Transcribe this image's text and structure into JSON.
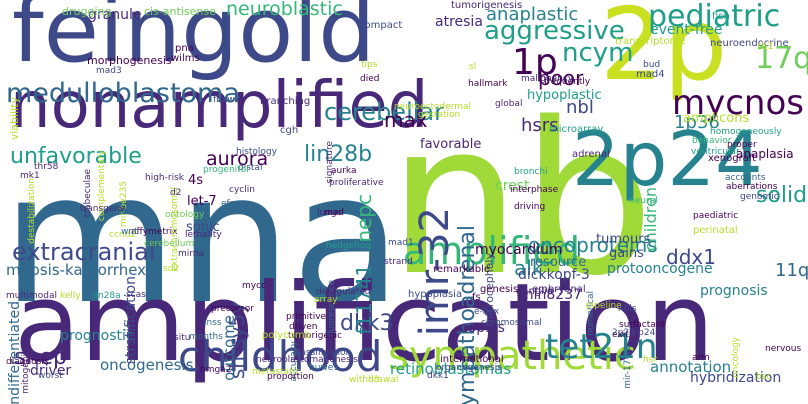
{
  "colors": {
    "background": "#ffffff",
    "palette": [
      "#440154",
      "#482878",
      "#3e4989",
      "#31688e",
      "#26828e",
      "#1f9e89",
      "#35b779",
      "#6ece58",
      "#b5de2b",
      "#fde725"
    ]
  },
  "words": [
    {
      "text": "mna",
      "color": "#31688e",
      "orient": "h"
    },
    {
      "text": "nb",
      "color": "#a0da39",
      "orient": "h"
    },
    {
      "text": "amplification",
      "color": "#482878",
      "orient": "h"
    },
    {
      "text": "feingold",
      "color": "#3e4989",
      "orient": "h"
    },
    {
      "text": "2p",
      "color": "#c8e020",
      "orient": "h"
    },
    {
      "text": "2p24",
      "color": "#26828e",
      "orient": "h"
    },
    {
      "text": "nonamplified",
      "color": "#482878",
      "orient": "h"
    },
    {
      "text": "mycnos",
      "color": "#440154",
      "orient": "h"
    },
    {
      "text": "childhood",
      "color": "#3e4989",
      "orient": "h"
    },
    {
      "text": "sympathetic",
      "color": "#a0da39",
      "orient": "h"
    },
    {
      "text": "amplified",
      "color": "#35b779",
      "orient": "h"
    },
    {
      "text": "tet21n",
      "color": "#26828e",
      "orient": "h"
    },
    {
      "text": "imr-32",
      "color": "#3e4989",
      "orient": "v"
    },
    {
      "text": "medulloblastoma",
      "color": "#31688e",
      "orient": "h"
    },
    {
      "text": "pediatric",
      "color": "#1f9e89",
      "orient": "h"
    },
    {
      "text": "17q",
      "color": "#6ece58",
      "orient": "h"
    },
    {
      "text": "1p",
      "color": "#440154",
      "orient": "h"
    },
    {
      "text": "neuroblastic",
      "color": "#35b779",
      "orient": "h"
    },
    {
      "text": "aggressive",
      "color": "#1f9e89",
      "orient": "h"
    },
    {
      "text": "anaplastic",
      "color": "#26828e",
      "orient": "h"
    },
    {
      "text": "ncym",
      "color": "#1f9e89",
      "orient": "h"
    },
    {
      "text": "poor",
      "color": "#440154",
      "orient": "h"
    },
    {
      "text": "cerebellar",
      "color": "#26828e",
      "orient": "h"
    },
    {
      "text": "extracranial",
      "color": "#3e4989",
      "orient": "h"
    },
    {
      "text": "unfavorable",
      "color": "#1f9e89",
      "orient": "h"
    },
    {
      "text": "aurora",
      "color": "#440154",
      "orient": "h"
    },
    {
      "text": "lin28b",
      "color": "#26828e",
      "orient": "h"
    },
    {
      "text": "max",
      "color": "#440154",
      "orient": "h"
    },
    {
      "text": "shep",
      "color": "#482878",
      "orient": "h"
    },
    {
      "text": "dkk3",
      "color": "#3e4989",
      "orient": "h"
    },
    {
      "text": "oncoproteins",
      "color": "#26828e",
      "orient": "h"
    },
    {
      "text": "solid",
      "color": "#1f9e89",
      "orient": "h"
    },
    {
      "text": "sympathoadrenal",
      "color": "#31688e",
      "orient": "v"
    },
    {
      "text": "nepc",
      "color": "#35b779",
      "orient": "v"
    },
    {
      "text": "f11741",
      "color": "#26828e",
      "orient": "v"
    },
    {
      "text": "sh-sy5y",
      "color": "#3e4989",
      "orient": "v"
    },
    {
      "text": "ddx1",
      "color": "#3e4989",
      "orient": "h"
    },
    {
      "text": "alk",
      "color": "#26828e",
      "orient": "h"
    },
    {
      "text": "11q",
      "color": "#31688e",
      "orient": "h"
    },
    {
      "text": "nbl",
      "color": "#3e4989",
      "orient": "h"
    },
    {
      "text": "hsrs",
      "color": "#482878",
      "orient": "h"
    },
    {
      "text": "1p36",
      "color": "#26828e",
      "orient": "h"
    },
    {
      "text": "children",
      "color": "#35b779",
      "orient": "v"
    },
    {
      "text": "oncogenesis",
      "color": "#31688e",
      "orient": "h"
    },
    {
      "text": "retinoblastomas",
      "color": "#1f9e89",
      "orient": "h"
    },
    {
      "text": "annotation",
      "color": "#26828e",
      "orient": "h"
    },
    {
      "text": "mitosis-karyorrhexis",
      "color": "#31688e",
      "orient": "h"
    },
    {
      "text": "prognosis",
      "color": "#26828e",
      "orient": "h"
    },
    {
      "text": "myocardium",
      "color": "#440154",
      "orient": "h"
    },
    {
      "text": "dickkopf-3",
      "color": "#3e4989",
      "orient": "h"
    },
    {
      "text": "protooncogene",
      "color": "#26828e",
      "orient": "h"
    },
    {
      "text": "mln8237",
      "color": "#482878",
      "orient": "h"
    },
    {
      "text": "hybridization",
      "color": "#3e4989",
      "orient": "h"
    },
    {
      "text": "copies",
      "color": "#482878",
      "orient": "h"
    },
    {
      "text": "driver",
      "color": "#482878",
      "orient": "h"
    },
    {
      "text": "prognostic",
      "color": "#26828e",
      "orient": "h"
    },
    {
      "text": "outcome",
      "color": "#31688e",
      "orient": "v"
    },
    {
      "text": "stratification",
      "color": "#3e4989",
      "orient": "v"
    },
    {
      "text": "undifferentiated",
      "color": "#31688e",
      "orient": "v"
    },
    {
      "text": "event-free",
      "color": "#1f9e89",
      "orient": "h"
    },
    {
      "text": "resource",
      "color": "#31688e",
      "orient": "h"
    },
    {
      "text": "gains",
      "color": "#3e4989",
      "orient": "h"
    },
    {
      "text": "tumours",
      "color": "#3e4989",
      "orient": "h"
    },
    {
      "text": "crest",
      "color": "#6ece58",
      "orient": "h"
    },
    {
      "text": "hypoplastic",
      "color": "#1f9e89",
      "orient": "h"
    },
    {
      "text": "amplicons",
      "color": "#b5de2b",
      "orient": "h"
    },
    {
      "text": "favorable",
      "color": "#482878",
      "orient": "h"
    },
    {
      "text": "atresia",
      "color": "#482878",
      "orient": "h"
    },
    {
      "text": "granule",
      "color": "#482878",
      "orient": "h"
    },
    {
      "text": "4s",
      "color": "#440154",
      "orient": "h"
    },
    {
      "text": "let-7",
      "color": "#440154",
      "orient": "h"
    },
    {
      "text": "sonic",
      "color": "#3e4989",
      "orient": "h"
    },
    {
      "text": "anaplasia",
      "color": "#440154",
      "orient": "h"
    },
    {
      "text": "microcephaly",
      "color": "#3e4989",
      "orient": "v"
    },
    {
      "text": "cis-antisense",
      "color": "#6ece58",
      "orient": "h"
    },
    {
      "text": "drugging",
      "color": "#6ece58",
      "orient": "h"
    },
    {
      "text": "morphogenesis",
      "color": "#440154",
      "orient": "h"
    },
    {
      "text": "tumorigenesis",
      "color": "#482878",
      "orient": "h"
    },
    {
      "text": "compact",
      "color": "#3e4989",
      "orient": "h"
    },
    {
      "text": "fish",
      "color": "#1f9e89",
      "orient": "h"
    },
    {
      "text": "neuroendocrine",
      "color": "#3e4989",
      "orient": "h"
    },
    {
      "text": "hallmark",
      "color": "#440154",
      "orient": "h"
    },
    {
      "text": "transcriptome",
      "color": "#b5de2b",
      "orient": "h"
    },
    {
      "text": "frequently",
      "color": "#440154",
      "orient": "h"
    },
    {
      "text": "malignancy",
      "color": "#482878",
      "orient": "h"
    },
    {
      "text": "global",
      "color": "#482878",
      "orient": "h"
    },
    {
      "text": "mad4",
      "color": "#3e4989",
      "orient": "h"
    },
    {
      "text": "rb1",
      "color": "#b5de2b",
      "orient": "h"
    },
    {
      "text": "bud",
      "color": "#3e4989",
      "orient": "h"
    },
    {
      "text": "pna",
      "color": "#440154",
      "orient": "h"
    },
    {
      "text": "wilms",
      "color": "#440154",
      "orient": "h"
    },
    {
      "text": "died",
      "color": "#440154",
      "orient": "h"
    },
    {
      "text": "tips",
      "color": "#b5de2b",
      "orient": "h"
    },
    {
      "text": "mad3",
      "color": "#3e4989",
      "orient": "h"
    },
    {
      "text": "viability",
      "color": "#b5de2b",
      "orient": "v"
    },
    {
      "text": "fbxw7",
      "color": "#3e4989",
      "orient": "h"
    },
    {
      "text": "branching",
      "color": "#482878",
      "orient": "h"
    },
    {
      "text": "neuroectodermal",
      "color": "#b5de2b",
      "orient": "h"
    },
    {
      "text": "gestation",
      "color": "#b5de2b",
      "orient": "h"
    },
    {
      "text": "signature",
      "color": "#482878",
      "orient": "v"
    },
    {
      "text": "cgh",
      "color": "#3e4989",
      "orient": "h"
    },
    {
      "text": "microarray",
      "color": "#1f9e89",
      "orient": "h"
    },
    {
      "text": "adrenal",
      "color": "#482878",
      "orient": "h"
    },
    {
      "text": "bronchi",
      "color": "#1f9e89",
      "orient": "h"
    },
    {
      "text": "interphase",
      "color": "#440154",
      "orient": "h"
    },
    {
      "text": "driving",
      "color": "#440154",
      "orient": "h"
    },
    {
      "text": "behavior",
      "color": "#35b779",
      "orient": "h"
    },
    {
      "text": "ventricular",
      "color": "#1f9e89",
      "orient": "h"
    },
    {
      "text": "xenograft",
      "color": "#440154",
      "orient": "h"
    },
    {
      "text": "homogeneously",
      "color": "#1f9e89",
      "orient": "h"
    },
    {
      "text": "proper",
      "color": "#440154",
      "orient": "h"
    },
    {
      "text": "accounts",
      "color": "#31688e",
      "orient": "h"
    },
    {
      "text": "aberrations",
      "color": "#440154",
      "orient": "h"
    },
    {
      "text": "genomic",
      "color": "#3e4989",
      "orient": "h"
    },
    {
      "text": "paediatric",
      "color": "#440154",
      "orient": "h"
    },
    {
      "text": "perinatal",
      "color": "#b5de2b",
      "orient": "h"
    },
    {
      "text": "neural",
      "color": "#35b779",
      "orient": "h"
    },
    {
      "text": "distal",
      "color": "#3e4989",
      "orient": "h"
    },
    {
      "text": "histology",
      "color": "#3e4989",
      "orient": "h"
    },
    {
      "text": "progenitor",
      "color": "#35b779",
      "orient": "h"
    },
    {
      "text": "aurka",
      "color": "#440154",
      "orient": "h"
    },
    {
      "text": "proliferative",
      "color": "#482878",
      "orient": "h"
    },
    {
      "text": "cyclin",
      "color": "#482878",
      "orient": "h"
    },
    {
      "text": "efs",
      "color": "#31688e",
      "orient": "h"
    },
    {
      "text": "ontology",
      "color": "#6ece58",
      "orient": "h"
    },
    {
      "text": "high-risk",
      "color": "#482878",
      "orient": "h"
    },
    {
      "text": "lethality",
      "color": "#482878",
      "orient": "h"
    },
    {
      "text": "affymetrix",
      "color": "#440154",
      "orient": "h"
    },
    {
      "text": "cerebellum",
      "color": "#6ece58",
      "orient": "h"
    },
    {
      "text": "mirna",
      "color": "#482878",
      "orient": "h"
    },
    {
      "text": "thr58",
      "color": "#482878",
      "orient": "h"
    },
    {
      "text": "mk1",
      "color": "#482878",
      "orient": "h"
    },
    {
      "text": "extrachromosomal",
      "color": "#b5de2b",
      "orient": "v"
    },
    {
      "text": "d2",
      "color": "#482878",
      "orient": "h"
    },
    {
      "text": "mir-be235",
      "color": "#b5de2b",
      "orient": "v"
    },
    {
      "text": "destabilization",
      "color": "#b5de2b",
      "orient": "v"
    },
    {
      "text": "trabeculae",
      "color": "#482878",
      "orient": "v"
    },
    {
      "text": "complementary",
      "color": "#b5de2b",
      "orient": "v"
    },
    {
      "text": "transgene",
      "color": "#482878",
      "orient": "h"
    },
    {
      "text": "ccnd2",
      "color": "#b5de2b",
      "orient": "h"
    },
    {
      "text": "wnt",
      "color": "#31688e",
      "orient": "h"
    },
    {
      "text": "sd2",
      "color": "#b5de2b",
      "orient": "h"
    },
    {
      "text": "lungs",
      "color": "#482878",
      "orient": "h"
    },
    {
      "text": "mad",
      "color": "#440154",
      "orient": "h"
    },
    {
      "text": "hedgehog",
      "color": "#1f9e89",
      "orient": "h"
    },
    {
      "text": "mad1",
      "color": "#3e4989",
      "orient": "h"
    },
    {
      "text": "strand",
      "color": "#482878",
      "orient": "h"
    },
    {
      "text": "multimodal",
      "color": "#482878",
      "orient": "h"
    },
    {
      "text": "kelly",
      "color": "#b5de2b",
      "orient": "h"
    },
    {
      "text": "lin28a",
      "color": "#1f9e89",
      "orient": "h"
    },
    {
      "text": "scas",
      "color": "#482878",
      "orient": "h"
    },
    {
      "text": "mycc",
      "color": "#440154",
      "orient": "h"
    },
    {
      "text": "deregulated",
      "color": "#482878",
      "orient": "h"
    },
    {
      "text": "fluorescence",
      "color": "#31688e",
      "orient": "v"
    },
    {
      "text": "array",
      "color": "#b5de2b",
      "orient": "h"
    },
    {
      "text": "hypoplasia",
      "color": "#3e4989",
      "orient": "h"
    },
    {
      "text": "remarkable",
      "color": "#440154",
      "orient": "h"
    },
    {
      "text": "fs",
      "color": "#440154",
      "orient": "h"
    },
    {
      "text": "genesis",
      "color": "#440154",
      "orient": "h"
    },
    {
      "text": "ganglia",
      "color": "#482878",
      "orient": "h"
    },
    {
      "text": "embryonal",
      "color": "#482878",
      "orient": "h"
    },
    {
      "text": "e-box",
      "color": "#3e4989",
      "orient": "h"
    },
    {
      "text": "chromosomal",
      "color": "#3e4989",
      "orient": "h"
    },
    {
      "text": "numerical",
      "color": "#31688e",
      "orient": "v"
    },
    {
      "text": "pipeline",
      "color": "#b5de2b",
      "orient": "h"
    },
    {
      "text": "exit",
      "color": "#440154",
      "orient": "h"
    },
    {
      "text": "surfactant",
      "color": "#440154",
      "orient": "h"
    },
    {
      "text": "nbls",
      "color": "#3e4989",
      "orient": "h"
    },
    {
      "text": "mir-17-92",
      "color": "#31688e",
      "orient": "v"
    },
    {
      "text": "2p23-p24",
      "color": "#3e4989",
      "orient": "h"
    },
    {
      "text": "oncology",
      "color": "#b5de2b",
      "orient": "v"
    },
    {
      "text": "nervous",
      "color": "#440154",
      "orient": "h"
    },
    {
      "text": "precursor",
      "color": "#440154",
      "orient": "h"
    },
    {
      "text": "months",
      "color": "#31688e",
      "orient": "h"
    },
    {
      "text": "inss",
      "color": "#31688e",
      "orient": "h"
    },
    {
      "text": "primitive",
      "color": "#440154",
      "orient": "h"
    },
    {
      "text": "tumorigenic",
      "color": "#440154",
      "orient": "h"
    },
    {
      "text": "driven",
      "color": "#440154",
      "orient": "h"
    },
    {
      "text": "accuracy",
      "color": "#31688e",
      "orient": "v"
    },
    {
      "text": "classification",
      "color": "#3e4989",
      "orient": "h"
    },
    {
      "text": "organogenesis",
      "color": "#3e4989",
      "orient": "h"
    },
    {
      "text": "international",
      "color": "#440154",
      "orient": "h"
    },
    {
      "text": "neuroblastomagenesis",
      "color": "#482878",
      "orient": "h"
    },
    {
      "text": "metastatic",
      "color": "#b5de2b",
      "orient": "h"
    },
    {
      "text": "hmga2",
      "color": "#440154",
      "orient": "h"
    },
    {
      "text": "proportion",
      "color": "#440154",
      "orient": "h"
    },
    {
      "text": "huwe1",
      "color": "#31688e",
      "orient": "h"
    },
    {
      "text": "dkk1",
      "color": "#3e4989",
      "orient": "h"
    },
    {
      "text": "h3",
      "color": "#b5de2b",
      "orient": "h"
    },
    {
      "text": "withdrawal",
      "color": "#b5de2b",
      "orient": "h"
    },
    {
      "text": "situ",
      "color": "#482878",
      "orient": "h"
    },
    {
      "text": "polycomb",
      "color": "#b5de2b",
      "orient": "h"
    },
    {
      "text": "mitogenic",
      "color": "#482878",
      "orient": "v"
    },
    {
      "text": "diagnosis",
      "color": "#440154",
      "orient": "h"
    },
    {
      "text": "worst",
      "color": "#3e4989",
      "orient": "h"
    },
    {
      "text": "arm",
      "color": "#440154",
      "orient": "h"
    },
    {
      "text": "hsr",
      "color": "#b5de2b",
      "orient": "h"
    },
    {
      "text": "bsc",
      "color": "#b5de2b",
      "orient": "h"
    },
    {
      "text": "sl",
      "color": "#b5de2b",
      "orient": "h"
    }
  ]
}
